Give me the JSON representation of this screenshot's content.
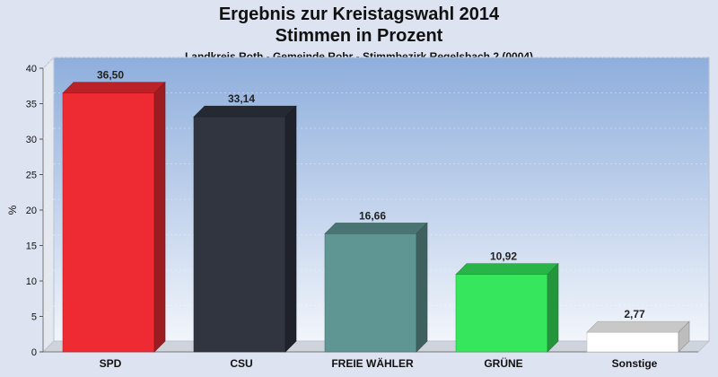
{
  "chart_data": {
    "type": "bar",
    "title_line1": "Ergebnis zur Kreistagswahl 2014",
    "title_line2": "Stimmen in Prozent",
    "subtitle": "Landkreis Roth - Gemeinde Rohr - Stimmbezirk Regelsbach 2 (0004)",
    "ylabel": "%",
    "ylim": [
      0,
      40
    ],
    "yticks": [
      0,
      5,
      10,
      15,
      20,
      25,
      30,
      35,
      40
    ],
    "grid": true,
    "categories": [
      "SPD",
      "CSU",
      "FREIE WÄHLER",
      "GRÜNE",
      "Sonstige"
    ],
    "values": [
      36.5,
      33.14,
      16.66,
      10.92,
      2.77
    ],
    "value_labels": [
      "36,50",
      "33,14",
      "16,66",
      "10,92",
      "2,77"
    ],
    "colors": [
      "#ee2b32",
      "#303540",
      "#5f9593",
      "#36e65c",
      "#ffffff"
    ],
    "background": "#dde3f0",
    "plot_gradient": [
      "#8eaedc",
      "#f2f5fb"
    ]
  }
}
